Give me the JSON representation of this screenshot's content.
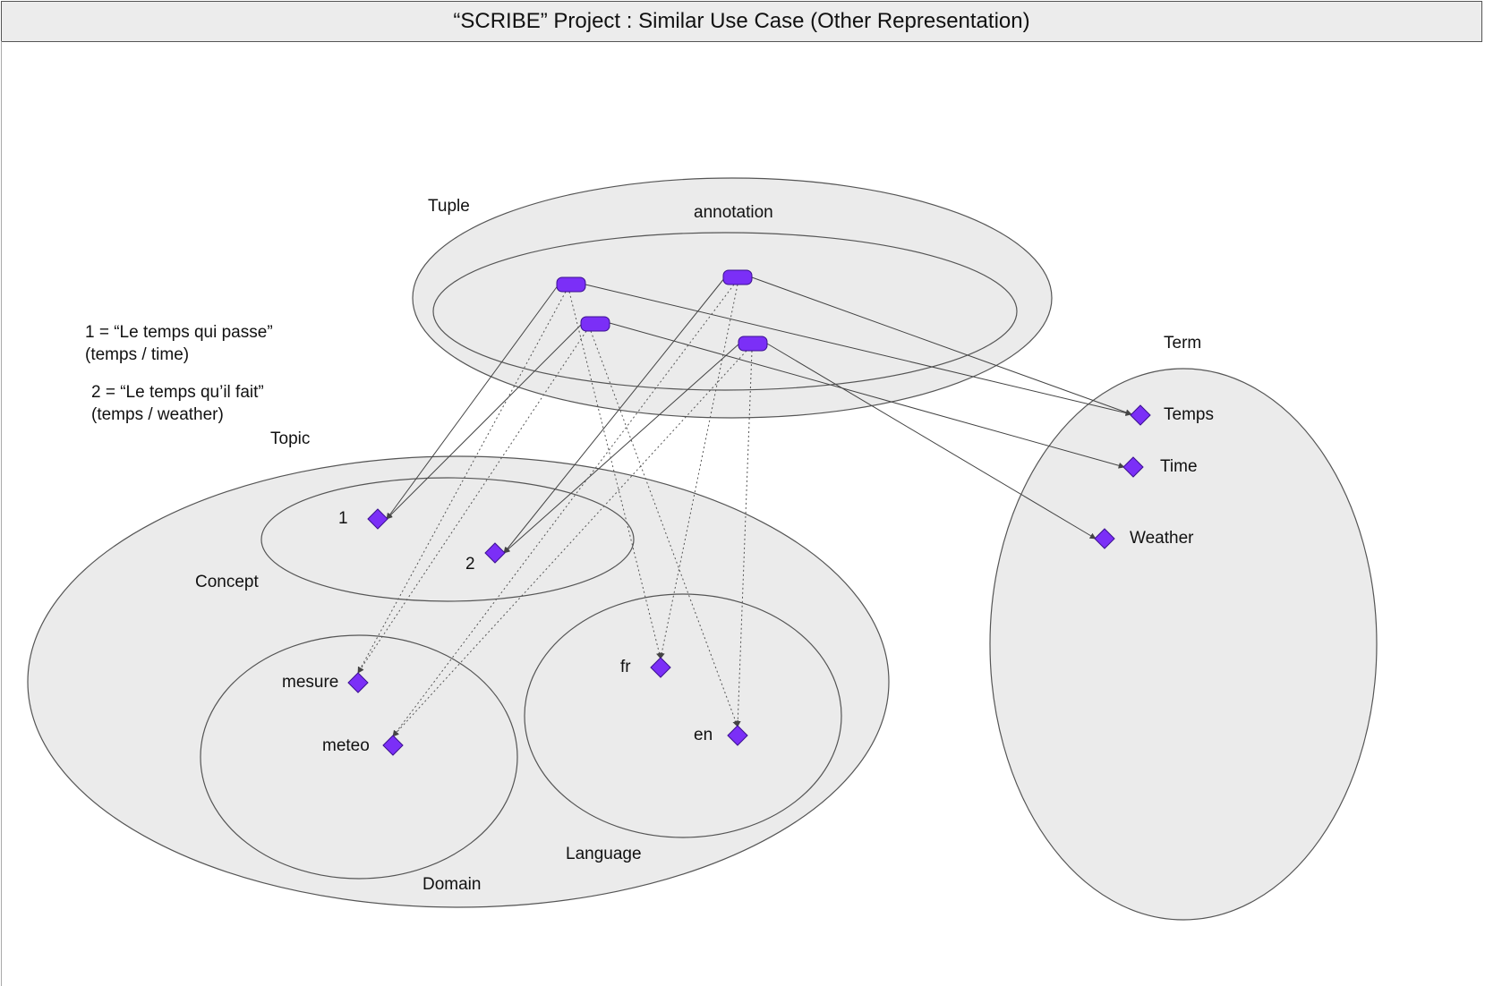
{
  "title": "“SCRIBE” Project : Similar Use Case (Other Representation)",
  "notes": {
    "note1_line1": "1 = “Le temps qui passe”",
    "note1_line2": "(temps / time)",
    "note2_line1": "2 = “Le temps qu’il fait”",
    "note2_line2": "(temps / weather)"
  },
  "sets": {
    "tuple": "Tuple",
    "annotation": "annotation",
    "term": "Term",
    "topic": "Topic",
    "concept": "Concept",
    "domain": "Domain",
    "language": "Language"
  },
  "nodes": {
    "temps": "Temps",
    "time": "Time",
    "weather": "Weather",
    "c1": "1",
    "c2": "2",
    "mesure": "mesure",
    "meteo": "meteo",
    "fr": "fr",
    "en": "en"
  },
  "colors": {
    "node_fill": "#7b2ff7",
    "node_stroke": "#3b1090",
    "set_fill": "#ebebeb",
    "set_stroke": "#555555"
  }
}
